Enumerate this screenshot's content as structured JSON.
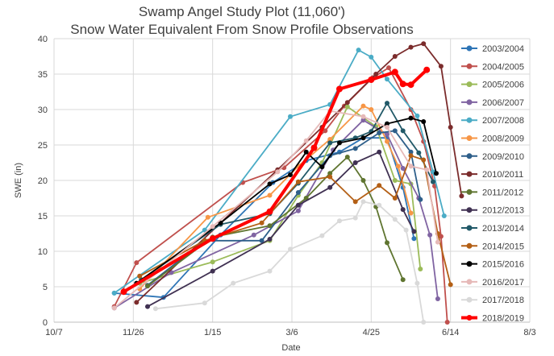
{
  "chart_data": {
    "type": "line",
    "title": "Swamp Angel Study Plot (11,060')",
    "subtitle": "Snow Water Equivalent From Snow Profile Observations",
    "xlabel": "Date",
    "ylabel": "SWE (in)",
    "x_ticks": [
      "10/7",
      "11/26",
      "1/15",
      "3/6",
      "4/25",
      "6/14",
      "8/3"
    ],
    "xlim_days_labels": [
      "10/7",
      "8/3"
    ],
    "ylim": [
      0,
      40
    ],
    "y_ticks": [
      "0",
      "5",
      "10",
      "15",
      "20",
      "25",
      "30",
      "35",
      "40"
    ],
    "grid": true,
    "legend_position": "right",
    "series": [
      {
        "name": "2003/2004",
        "color": "#2e75b6",
        "points": [
          [
            "11/14",
            4.1
          ],
          [
            "12/15",
            3.5
          ],
          [
            "1/20",
            12.3
          ],
          [
            "2/22",
            19.7
          ],
          [
            "3/15",
            22.8
          ],
          [
            "4/5",
            24.0
          ],
          [
            "4/20",
            26.0
          ],
          [
            "5/5",
            26.0
          ],
          [
            "5/15",
            19.0
          ],
          [
            "5/22",
            11.8
          ]
        ]
      },
      {
        "name": "2004/2005",
        "color": "#c0504d",
        "points": [
          [
            "11/14",
            2.2
          ],
          [
            "11/28",
            8.4
          ],
          [
            "2/3",
            19.7
          ],
          [
            "3/1",
            21.8
          ],
          [
            "3/27",
            27.0
          ],
          [
            "4/8",
            30.5
          ],
          [
            "4/26",
            34.5
          ],
          [
            "5/6",
            35.9
          ],
          [
            "5/20",
            30.0
          ],
          [
            "5/28",
            25.5
          ],
          [
            "6/4",
            19.2
          ],
          [
            "6/8",
            12.1
          ],
          [
            "6/12",
            0.0
          ]
        ]
      },
      {
        "name": "2005/2006",
        "color": "#9bbb59",
        "points": [
          [
            "11/30",
            5.5
          ],
          [
            "1/15",
            8.5
          ],
          [
            "2/20",
            11.5
          ],
          [
            "3/10",
            17.9
          ],
          [
            "3/25",
            22.5
          ],
          [
            "4/10",
            30.4
          ],
          [
            "4/28",
            27.6
          ],
          [
            "5/10",
            20.0
          ],
          [
            "5/20",
            19.5
          ],
          [
            "5/26",
            7.5
          ]
        ]
      },
      {
        "name": "2006/2007",
        "color": "#8064a2",
        "points": [
          [
            "11/14",
            2.0
          ],
          [
            "12/20",
            7.0
          ],
          [
            "2/10",
            12.3
          ],
          [
            "3/10",
            15.7
          ],
          [
            "4/1",
            24.3
          ],
          [
            "4/20",
            28.5
          ],
          [
            "5/5",
            26.5
          ],
          [
            "5/15",
            21.7
          ],
          [
            "5/25",
            17.5
          ],
          [
            "6/1",
            12.3
          ],
          [
            "6/6",
            3.3
          ]
        ]
      },
      {
        "name": "2007/2008",
        "color": "#4bacc6",
        "points": [
          [
            "11/14",
            4.1
          ],
          [
            "1/10",
            13.0
          ],
          [
            "3/5",
            29.0
          ],
          [
            "3/30",
            30.7
          ],
          [
            "4/17",
            38.4
          ],
          [
            "4/25",
            37.4
          ],
          [
            "5/5",
            34.3
          ],
          [
            "5/24",
            29.1
          ],
          [
            "6/3",
            21.2
          ],
          [
            "6/10",
            15.0
          ]
        ]
      },
      {
        "name": "2008/2009",
        "color": "#f79646",
        "points": [
          [
            "11/30",
            4.7
          ],
          [
            "1/12",
            14.8
          ],
          [
            "2/20",
            17.9
          ],
          [
            "3/10",
            22.0
          ],
          [
            "3/30",
            25.8
          ],
          [
            "4/20",
            30.5
          ],
          [
            "4/25",
            30.0
          ],
          [
            "5/5",
            25.5
          ],
          [
            "5/12",
            22.0
          ],
          [
            "5/20",
            15.4
          ]
        ]
      },
      {
        "name": "2009/2010",
        "color": "#2e5f8a",
        "points": [
          [
            "12/5",
            5.2
          ],
          [
            "1/10",
            11.5
          ],
          [
            "2/15",
            11.5
          ],
          [
            "3/10",
            18.3
          ],
          [
            "3/30",
            23.5
          ],
          [
            "4/15",
            24.5
          ],
          [
            "4/30",
            26.7
          ],
          [
            "5/10",
            27.0
          ],
          [
            "5/20",
            24.0
          ],
          [
            "5/26",
            17.3
          ]
        ]
      },
      {
        "name": "2010/2011",
        "color": "#7b2c2c",
        "points": [
          [
            "11/28",
            2.8
          ],
          [
            "1/20",
            14.0
          ],
          [
            "2/25",
            21.5
          ],
          [
            "3/25",
            27.5
          ],
          [
            "4/10",
            31.0
          ],
          [
            "4/28",
            35.0
          ],
          [
            "5/10",
            37.5
          ],
          [
            "5/20",
            38.8
          ],
          [
            "5/28",
            39.3
          ],
          [
            "6/8",
            36.1
          ],
          [
            "6/14",
            27.5
          ],
          [
            "6/21",
            17.8
          ]
        ]
      },
      {
        "name": "2011/2012",
        "color": "#5f7530",
        "points": [
          [
            "12/5",
            5.1
          ],
          [
            "1/15",
            12.0
          ],
          [
            "2/20",
            13.6
          ],
          [
            "3/15",
            17.5
          ],
          [
            "3/30",
            21.0
          ],
          [
            "4/10",
            23.3
          ],
          [
            "4/20",
            20.0
          ],
          [
            "4/28",
            16.3
          ],
          [
            "5/5",
            11.2
          ],
          [
            "5/15",
            6.0
          ]
        ]
      },
      {
        "name": "2012/2013",
        "color": "#403152",
        "points": [
          [
            "12/5",
            2.2
          ],
          [
            "1/15",
            7.2
          ],
          [
            "2/20",
            11.7
          ],
          [
            "3/10",
            16.5
          ],
          [
            "3/30",
            19.0
          ],
          [
            "4/15",
            22.5
          ],
          [
            "4/30",
            24.0
          ],
          [
            "5/15",
            15.9
          ],
          [
            "5/22",
            12.8
          ]
        ]
      },
      {
        "name": "2013/2014",
        "color": "#215968",
        "points": [
          [
            "12/1",
            6.0
          ],
          [
            "1/20",
            13.8
          ],
          [
            "2/20",
            15.3
          ],
          [
            "3/10",
            19.6
          ],
          [
            "3/30",
            25.3
          ],
          [
            "4/15",
            26.0
          ],
          [
            "4/25",
            26.9
          ],
          [
            "5/5",
            30.9
          ],
          [
            "5/15",
            27.0
          ],
          [
            "5/25",
            23.9
          ],
          [
            "6/3",
            19.8
          ]
        ]
      },
      {
        "name": "2014/2015",
        "color": "#b35f15",
        "points": [
          [
            "11/30",
            6.5
          ],
          [
            "1/10",
            11.5
          ],
          [
            "2/15",
            14.0
          ],
          [
            "3/10",
            19.8
          ],
          [
            "3/30",
            20.5
          ],
          [
            "4/15",
            17.0
          ],
          [
            "4/30",
            19.3
          ],
          [
            "5/10",
            17.5
          ],
          [
            "5/20",
            23.5
          ],
          [
            "5/28",
            22.9
          ],
          [
            "6/6",
            12.5
          ],
          [
            "6/14",
            5.3
          ]
        ]
      },
      {
        "name": "2015/2016",
        "color": "#000000",
        "points": [
          [
            "11/28",
            5.5
          ],
          [
            "1/20",
            14.0
          ],
          [
            "2/20",
            19.5
          ],
          [
            "3/5",
            20.8
          ],
          [
            "3/15",
            24.0
          ],
          [
            "3/25",
            21.9
          ],
          [
            "4/5",
            25.3
          ],
          [
            "4/20",
            26.0
          ],
          [
            "5/5",
            28.0
          ],
          [
            "5/20",
            28.8
          ],
          [
            "5/28",
            28.3
          ],
          [
            "6/5",
            21.0
          ]
        ]
      },
      {
        "name": "2016/2017",
        "color": "#e6b9b8",
        "points": [
          [
            "11/14",
            2.0
          ],
          [
            "1/15",
            13.5
          ],
          [
            "2/25",
            21.2
          ],
          [
            "3/15",
            25.6
          ],
          [
            "3/30",
            29.8
          ],
          [
            "4/20",
            29.0
          ],
          [
            "5/5",
            27.5
          ],
          [
            "5/20",
            22.0
          ],
          [
            "5/30",
            21.5
          ],
          [
            "6/6",
            11.3
          ]
        ]
      },
      {
        "name": "2017/2018",
        "color": "#d9d9d9",
        "points": [
          [
            "12/10",
            1.9
          ],
          [
            "1/10",
            2.7
          ],
          [
            "1/28",
            5.5
          ],
          [
            "2/20",
            7.2
          ],
          [
            "3/5",
            10.3
          ],
          [
            "3/25",
            12.2
          ],
          [
            "4/5",
            14.3
          ],
          [
            "4/15",
            14.7
          ],
          [
            "4/20",
            17.0
          ],
          [
            "4/30",
            16.5
          ],
          [
            "5/10",
            14.5
          ],
          [
            "5/17",
            13.0
          ],
          [
            "5/24",
            5.5
          ],
          [
            "5/28",
            0.0
          ]
        ]
      },
      {
        "name": "2018/2019",
        "color": "#ff0000",
        "points": [
          [
            "11/20",
            4.3
          ],
          [
            "1/15",
            11.8
          ],
          [
            "2/20",
            15.6
          ],
          [
            "3/20",
            24.6
          ],
          [
            "4/5",
            32.9
          ],
          [
            "4/25",
            34.2
          ],
          [
            "5/10",
            35.3
          ],
          [
            "5/15",
            33.6
          ],
          [
            "5/20",
            33.5
          ],
          [
            "5/30",
            35.6
          ]
        ]
      }
    ]
  }
}
